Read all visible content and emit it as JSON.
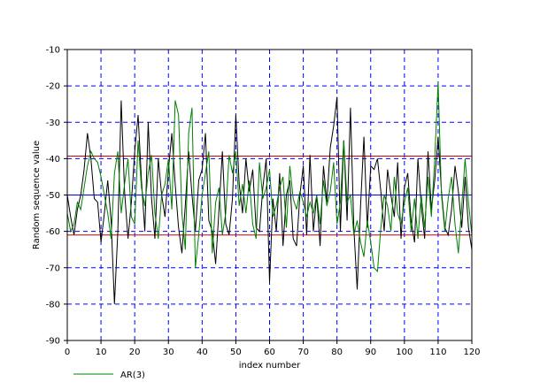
{
  "chart_data": {
    "type": "line",
    "title": "",
    "xlabel": "index number",
    "ylabel": "Random sequence value",
    "xlim": [
      0,
      120
    ],
    "ylim": [
      -90,
      -10
    ],
    "xticks": [
      0,
      10,
      20,
      30,
      40,
      50,
      60,
      70,
      80,
      90,
      100,
      110,
      120
    ],
    "yticks": [
      -90,
      -80,
      -70,
      -60,
      -50,
      -40,
      -30,
      -20,
      -10
    ],
    "grid": true,
    "grid_style": "dashed",
    "legend_position": "bottom-left",
    "series": [
      {
        "color": "#000000",
        "x": [
          0,
          1,
          2,
          3,
          4,
          5,
          6,
          7,
          8,
          9,
          10,
          11,
          12,
          13,
          14,
          15,
          16,
          17,
          18,
          19,
          20,
          21,
          22,
          23,
          24,
          25,
          26,
          27,
          28,
          29,
          30,
          31,
          32,
          33,
          34,
          35,
          36,
          37,
          38,
          39,
          40,
          41,
          42,
          43,
          44,
          45,
          46,
          47,
          48,
          49,
          50,
          51,
          52,
          53,
          54,
          55,
          56,
          57,
          58,
          59,
          60,
          61,
          62,
          63,
          64,
          65,
          66,
          67,
          68,
          69,
          70,
          71,
          72,
          73,
          74,
          75,
          76,
          77,
          78,
          79,
          80,
          81,
          82,
          83,
          84,
          85,
          86,
          87,
          88,
          89,
          90,
          91,
          92,
          93,
          94,
          95,
          96,
          97,
          98,
          99,
          100,
          101,
          102,
          103,
          104,
          105,
          106,
          107,
          108,
          109,
          110,
          111,
          112,
          113,
          114,
          115,
          116,
          117,
          118,
          119,
          120
        ],
        "values": [
          -50,
          -56,
          -61,
          -54,
          -50,
          -43,
          -33,
          -40,
          -51,
          -52,
          -63,
          -55,
          -46,
          -57,
          -80,
          -60,
          -24,
          -49,
          -62,
          -52,
          -38,
          -28,
          -46,
          -60,
          -30,
          -51,
          -62,
          -40,
          -50,
          -56,
          -43,
          -33,
          -47,
          -59,
          -66,
          -53,
          -38,
          -50,
          -60,
          -46,
          -43,
          -33,
          -57,
          -60,
          -69,
          -54,
          -38,
          -58,
          -61,
          -51,
          -28,
          -47,
          -55,
          -40,
          -49,
          -43,
          -59,
          -60,
          -48,
          -40,
          -74,
          -51,
          -60,
          -44,
          -64,
          -50,
          -46,
          -62,
          -64,
          -50,
          -42,
          -61,
          -39,
          -60,
          -50,
          -64,
          -42,
          -52,
          -37,
          -31,
          -23,
          -60,
          -35,
          -57,
          -26,
          -59,
          -76,
          -53,
          -34,
          -59,
          -42,
          -43,
          -40,
          -49,
          -60,
          -43,
          -50,
          -56,
          -41,
          -62,
          -48,
          -44,
          -57,
          -63,
          -40,
          -53,
          -62,
          -38,
          -54,
          -46,
          -34,
          -49,
          -59,
          -61,
          -54,
          -42,
          -49,
          -59,
          -45,
          -59,
          -65
        ]
      },
      {
        "name": "AR(3)",
        "color": "#008000",
        "x": [
          0,
          1,
          2,
          3,
          4,
          5,
          6,
          7,
          8,
          9,
          10,
          11,
          12,
          13,
          14,
          15,
          16,
          17,
          18,
          19,
          20,
          21,
          22,
          23,
          24,
          25,
          26,
          27,
          28,
          29,
          30,
          31,
          32,
          33,
          34,
          35,
          36,
          37,
          38,
          39,
          40,
          41,
          42,
          43,
          44,
          45,
          46,
          47,
          48,
          49,
          50,
          51,
          52,
          53,
          54,
          55,
          56,
          57,
          58,
          59,
          60,
          61,
          62,
          63,
          64,
          65,
          66,
          67,
          68,
          69,
          70,
          71,
          72,
          73,
          74,
          75,
          76,
          77,
          78,
          79,
          80,
          81,
          82,
          83,
          84,
          85,
          86,
          87,
          88,
          89,
          90,
          91,
          92,
          93,
          94,
          95,
          96,
          97,
          98,
          99,
          100,
          101,
          102,
          103,
          104,
          105,
          106,
          107,
          108,
          109,
          110,
          111,
          112,
          113,
          114,
          115,
          116,
          117,
          118,
          119,
          120
        ],
        "values": [
          -55,
          -60,
          -58,
          -52,
          -54,
          -48,
          -42,
          -38,
          -40,
          -41,
          -45,
          -50,
          -55,
          -62,
          -44,
          -38,
          -55,
          -47,
          -40,
          -56,
          -58,
          -35,
          -48,
          -53,
          -44,
          -39,
          -55,
          -62,
          -50,
          -47,
          -40,
          -54,
          -24,
          -28,
          -55,
          -65,
          -33,
          -26,
          -70,
          -61,
          -50,
          -44,
          -38,
          -66,
          -52,
          -48,
          -61,
          -55,
          -39,
          -44,
          -38,
          -53,
          -47,
          -55,
          -46,
          -58,
          -62,
          -41,
          -51,
          -48,
          -43,
          -56,
          -53,
          -48,
          -45,
          -59,
          -42,
          -51,
          -54,
          -49,
          -52,
          -56,
          -52,
          -55,
          -50,
          -58,
          -46,
          -53,
          -49,
          -41,
          -58,
          -52,
          -35,
          -52,
          -50,
          -61,
          -57,
          -63,
          -67,
          -57,
          -63,
          -70,
          -71,
          -59,
          -50,
          -53,
          -60,
          -45,
          -55,
          -58,
          -52,
          -48,
          -60,
          -51,
          -62,
          -50,
          -59,
          -45,
          -56,
          -40,
          -19,
          -50,
          -60,
          -51,
          -45,
          -58,
          -66,
          -53,
          -40,
          -52,
          -61
        ],
        "legend_label": "AR(3)"
      }
    ],
    "reference_lines": [
      {
        "y": -50,
        "color": "#0000ff"
      },
      {
        "y": -39.3,
        "color": "#cc0000"
      },
      {
        "y": -61,
        "color": "#cc0000"
      }
    ]
  },
  "colors": {
    "grid": "#0000ff",
    "axis": "#000000",
    "background": "#ffffff"
  }
}
